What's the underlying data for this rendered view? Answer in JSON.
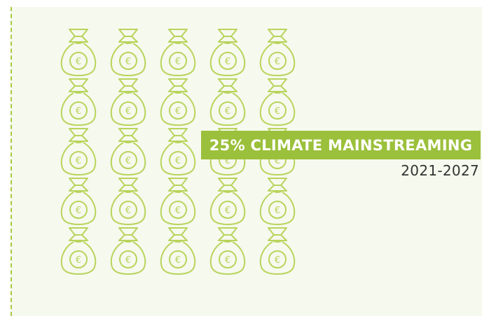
{
  "colors": {
    "accent": "#9bc03b",
    "bag_stroke": "#b8d45c",
    "panel_bg": "#f6f9ee",
    "text": "#333333"
  },
  "bags": {
    "rows": 5,
    "cols": 5,
    "symbol": "€",
    "icon": "money-bag-euro-icon"
  },
  "banner": {
    "label": "25% CLIMATE MAINSTREAMING"
  },
  "period": "2021-2027"
}
